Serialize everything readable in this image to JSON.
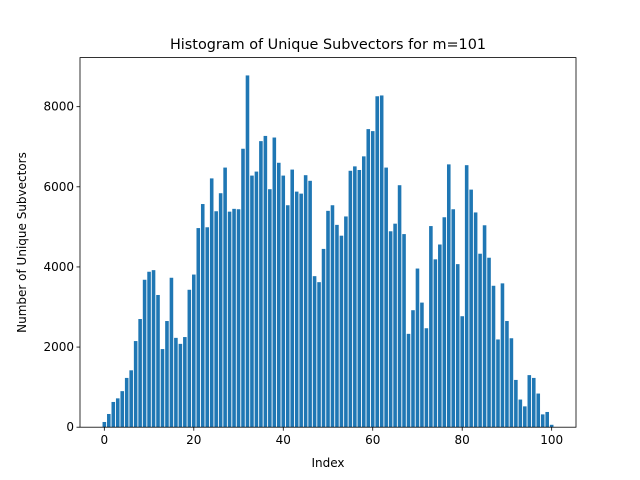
{
  "chart_data": {
    "type": "bar",
    "title": "Histogram of Unique Subvectors for m=101",
    "x_label": "Index",
    "y_label": "Number of Unique Subvectors",
    "color": "#1f77b4",
    "bar_width": 0.8,
    "x": [
      0,
      1,
      2,
      3,
      4,
      5,
      6,
      7,
      8,
      9,
      10,
      11,
      12,
      13,
      14,
      15,
      16,
      17,
      18,
      19,
      20,
      21,
      22,
      23,
      24,
      25,
      26,
      27,
      28,
      29,
      30,
      31,
      32,
      33,
      34,
      35,
      36,
      37,
      38,
      39,
      40,
      41,
      42,
      43,
      44,
      45,
      46,
      47,
      48,
      49,
      50,
      51,
      52,
      53,
      54,
      55,
      56,
      57,
      58,
      59,
      60,
      61,
      62,
      63,
      64,
      65,
      66,
      67,
      68,
      69,
      70,
      71,
      72,
      73,
      74,
      75,
      76,
      77,
      78,
      79,
      80,
      81,
      82,
      83,
      84,
      85,
      86,
      87,
      88,
      89,
      90,
      91,
      92,
      93,
      94,
      95,
      96,
      97,
      98,
      99,
      100
    ],
    "values": [
      130,
      330,
      630,
      720,
      900,
      1230,
      1420,
      2150,
      2700,
      3680,
      3880,
      3920,
      3300,
      1950,
      2650,
      3730,
      2230,
      2080,
      2250,
      3430,
      3810,
      4970,
      5570,
      4990,
      6210,
      5390,
      5840,
      6480,
      5380,
      5450,
      5440,
      6950,
      8780,
      6280,
      6380,
      7140,
      7270,
      5940,
      7230,
      6600,
      6280,
      5540,
      6430,
      5880,
      5830,
      6290,
      6150,
      3770,
      3620,
      4450,
      5400,
      5540,
      5050,
      4780,
      5260,
      6400,
      6510,
      6420,
      6760,
      7440,
      7390,
      8260,
      8280,
      6480,
      4890,
      5080,
      6040,
      4820,
      2330,
      2920,
      3960,
      3110,
      2470,
      5020,
      4190,
      4560,
      5240,
      6560,
      5440,
      4070,
      2770,
      6540,
      5930,
      5360,
      4330,
      5040,
      4230,
      3530,
      2190,
      3590,
      2650,
      2220,
      1180,
      690,
      520,
      1300,
      1230,
      840,
      320,
      380,
      60
    ],
    "xlim": [
      -5.44,
      105.44
    ],
    "ylim": [
      0,
      9225
    ],
    "xticks": [
      0,
      20,
      40,
      60,
      80,
      100
    ],
    "yticks": [
      0,
      2000,
      4000,
      6000,
      8000
    ]
  }
}
